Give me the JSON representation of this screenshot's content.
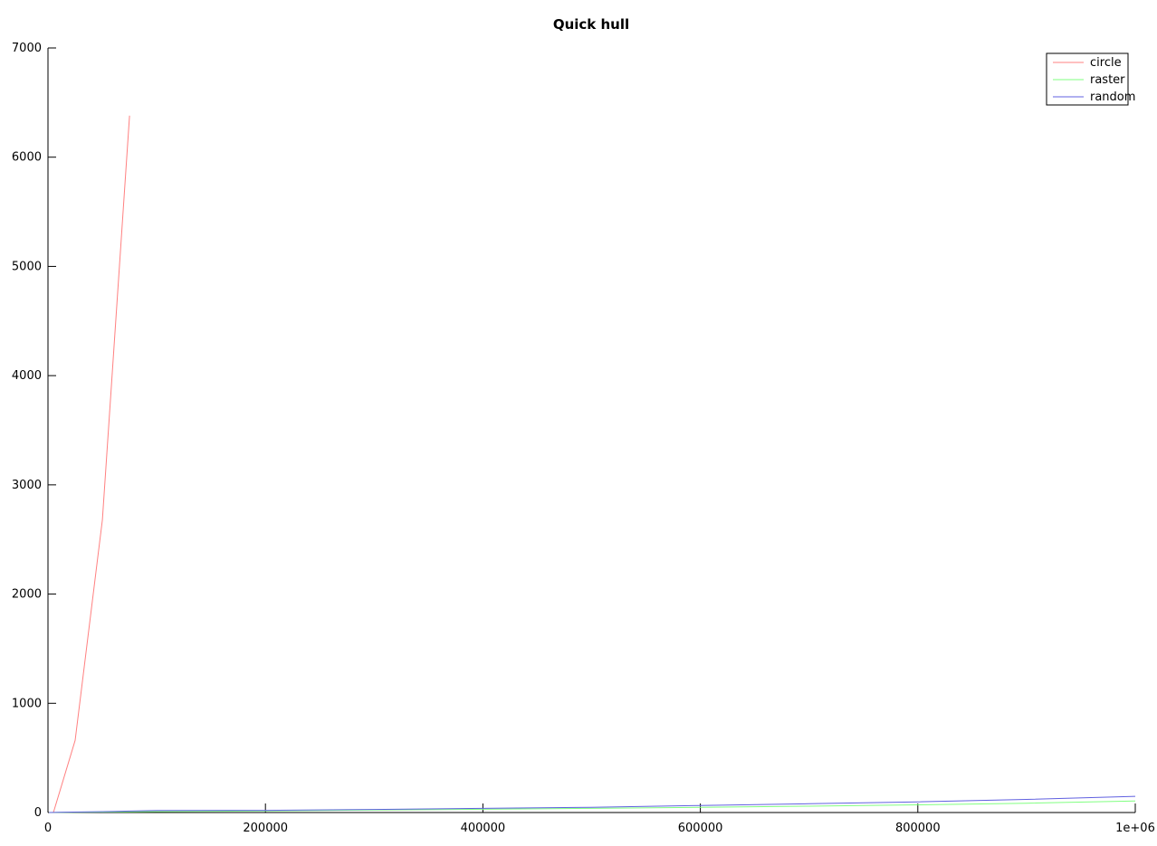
{
  "chart_data": {
    "type": "line",
    "title": "Quick hull",
    "xlabel": "",
    "ylabel": "",
    "xlim": [
      0,
      1000000
    ],
    "ylim": [
      0,
      7000
    ],
    "x_ticks": [
      0,
      200000,
      400000,
      600000,
      800000,
      1000000
    ],
    "x_tick_labels": [
      "0",
      "200000",
      "400000",
      "600000",
      "800000",
      "1e+06"
    ],
    "y_ticks": [
      0,
      1000,
      2000,
      3000,
      4000,
      5000,
      6000,
      7000
    ],
    "y_tick_labels": [
      "0",
      "1000",
      "2000",
      "3000",
      "4000",
      "5000",
      "6000",
      "7000"
    ],
    "grid": false,
    "legend_position": "top-right",
    "series": [
      {
        "name": "circle",
        "color": "#ff8080",
        "x": [
          5000,
          25000,
          50000,
          75000
        ],
        "y": [
          0,
          660,
          2680,
          6380
        ]
      },
      {
        "name": "raster",
        "color": "#80ff80",
        "x": [
          1000,
          10000,
          100000,
          200000,
          300000,
          400000,
          500000,
          600000,
          700000,
          800000,
          900000,
          1000000
        ],
        "y": [
          0,
          1,
          8,
          15,
          22,
          30,
          38,
          47,
          58,
          70,
          85,
          105
        ]
      },
      {
        "name": "random",
        "color": "#6060e0",
        "x": [
          1000,
          10000,
          50000,
          100000,
          200000,
          300000,
          400000,
          500000,
          600000,
          700000,
          800000,
          900000,
          1000000
        ],
        "y": [
          0,
          2,
          8,
          18,
          20,
          28,
          38,
          48,
          65,
          80,
          98,
          120,
          148
        ]
      }
    ]
  }
}
